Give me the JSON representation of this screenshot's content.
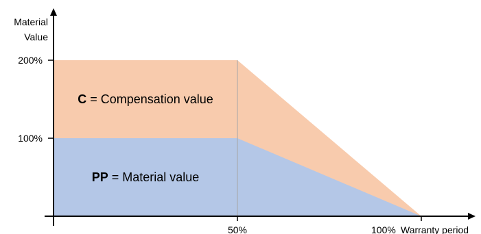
{
  "chart_data": {
    "type": "area",
    "ylabel_lines": [
      "Material",
      "Value"
    ],
    "xlabel": "Warranty period",
    "x_ticks": [
      {
        "value": 50,
        "label": "50%"
      },
      {
        "value": 100,
        "label": "100%"
      }
    ],
    "y_ticks": [
      {
        "value": 100,
        "label": "100%"
      },
      {
        "value": 200,
        "label": "200%"
      }
    ],
    "xlim": [
      0,
      100
    ],
    "ylim": [
      0,
      200
    ],
    "series": [
      {
        "key": "compensation",
        "x": [
          0,
          50,
          100
        ],
        "y": [
          200,
          200,
          0
        ],
        "color": "#f8cbad"
      },
      {
        "key": "material",
        "x": [
          0,
          50,
          100
        ],
        "y": [
          100,
          100,
          0
        ],
        "color": "#b4c7e7"
      }
    ],
    "annotations": [
      {
        "key": "compensation",
        "bold": "C",
        "text": " = Compensation value",
        "x": 25,
        "y": 150
      },
      {
        "key": "material",
        "bold": "PP",
        "text": " = Material value",
        "x": 25,
        "y": 50
      }
    ],
    "guide_x": 50,
    "colors": {
      "compensation": "#f8cbad",
      "material": "#b4c7e7",
      "guide": "#a6a6a6",
      "axis": "#000000"
    }
  }
}
